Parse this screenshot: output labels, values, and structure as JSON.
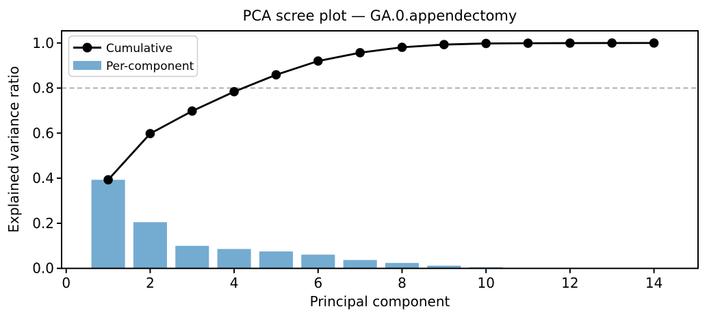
{
  "figure": {
    "background": "#ffffff"
  },
  "legend": {
    "cumulative_label": "Cumulative",
    "per_component_label": "Per-component"
  },
  "chart_data": {
    "type": "bar",
    "title": "PCA scree plot — GA.0.appendectomy",
    "xlabel": "Principal component",
    "ylabel": "Explained variance ratio",
    "categories": [
      1,
      2,
      3,
      4,
      5,
      6,
      7,
      8,
      9,
      10,
      11,
      12,
      13,
      14
    ],
    "series": [
      {
        "name": "Cumulative",
        "type": "line",
        "color": "#000000",
        "marker": "circle",
        "values": [
          0.393,
          0.598,
          0.698,
          0.784,
          0.859,
          0.92,
          0.957,
          0.981,
          0.993,
          0.998,
          0.999,
          0.9995,
          0.9998,
          1.0
        ]
      },
      {
        "name": "Per-component",
        "type": "bar",
        "color": "#74abd1",
        "values": [
          0.393,
          0.205,
          0.1,
          0.086,
          0.075,
          0.061,
          0.037,
          0.024,
          0.012,
          0.005,
          0.001,
          0.0005,
          0.0003,
          0.0002
        ]
      }
    ],
    "threshold_line": {
      "y": 0.8,
      "style": "dashed",
      "color": "#999999"
    },
    "xtick_values": [
      0,
      2,
      4,
      6,
      8,
      10,
      12,
      14
    ],
    "xtick_labels": [
      "0",
      "2",
      "4",
      "6",
      "8",
      "10",
      "12",
      "14"
    ],
    "ytick_values": [
      0.0,
      0.2,
      0.4,
      0.6,
      0.8,
      1.0
    ],
    "ytick_labels": [
      "0.0",
      "0.2",
      "0.4",
      "0.6",
      "0.8",
      "1.0"
    ],
    "xlim": [
      -0.11,
      15.05
    ],
    "ylim": [
      0,
      1.054
    ],
    "bar_width_units": 0.8,
    "legend_position": "upper left",
    "grid": false
  }
}
